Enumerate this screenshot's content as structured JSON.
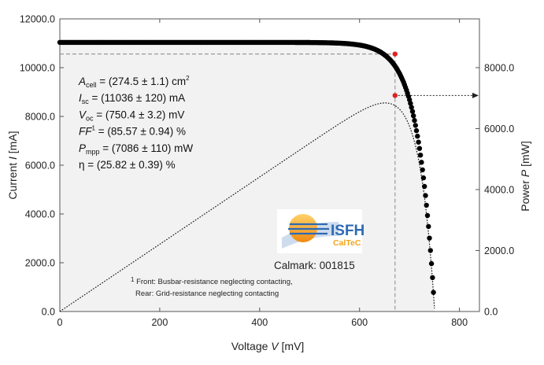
{
  "chart_data": {
    "type": "scatter",
    "xlabel_text": "Voltage ",
    "xlabel_var": "V",
    "xlabel_unit": " [mV]",
    "ylabel_text": "Current ",
    "ylabel_var": "I",
    "ylabel_unit": " [mA]",
    "y2label_text": "Power ",
    "y2label_var": "P",
    "y2label_unit": " [mW]",
    "xlim": [
      0,
      840
    ],
    "ylim": [
      0,
      12000
    ],
    "y2lim": [
      0,
      9600
    ],
    "x_ticks": [
      "0",
      "200",
      "400",
      "600",
      "800"
    ],
    "y_ticks": [
      "0.0",
      "2000.0",
      "4000.0",
      "6000.0",
      "8000.0",
      "10000.0",
      "12000.0"
    ],
    "y2_ticks": [
      "0.0",
      "2000.0",
      "4000.0",
      "6000.0",
      "8000.0"
    ],
    "mpp": {
      "voltage": 671,
      "current": 10560,
      "power": 7086
    },
    "iv_params": {
      "isc": 11036,
      "voc": 750.4,
      "ff": 0.8557
    },
    "series": [
      {
        "kind": "I-V curve",
        "axis": "left",
        "style": "black dots",
        "points_per_mV": 0.5
      },
      {
        "kind": "P-V curve",
        "axis": "right",
        "style": "dotted line"
      }
    ],
    "annotations": [
      {
        "var": "A",
        "sub": "cell",
        "text": " = (274.5 ± 1.1) cm",
        "sup": "2"
      },
      {
        "var": "I",
        "sub": "sc",
        "text": " = (11036 ± 120) mA"
      },
      {
        "var": "V",
        "sub": "oc",
        "text": " = (750.4 ± 3.2) mV"
      },
      {
        "var": "FF",
        "sup": "1",
        "text": " = (85.57 ± 0.94) %"
      },
      {
        "var": "P",
        "sub": "mpp",
        "text": " = (7086 ± 110) mW"
      },
      {
        "var": "",
        "text": "η = (25.82 ± 0.39) %"
      }
    ],
    "footnote": {
      "sup": "1",
      "line1": " Front: Busbar-resistance neglecting contacting,",
      "line2": "Rear: Grid-resistance neglecting contacting"
    },
    "calmark": "Calmark: 001815",
    "logo": {
      "name": "ISFH",
      "sub": "CalTeC"
    },
    "colors": {
      "data": "#000000",
      "mpp": "#e02020",
      "frame": "#555555",
      "logo_text": "#2d6ab4",
      "logo_sun": "#f2a61c"
    }
  }
}
